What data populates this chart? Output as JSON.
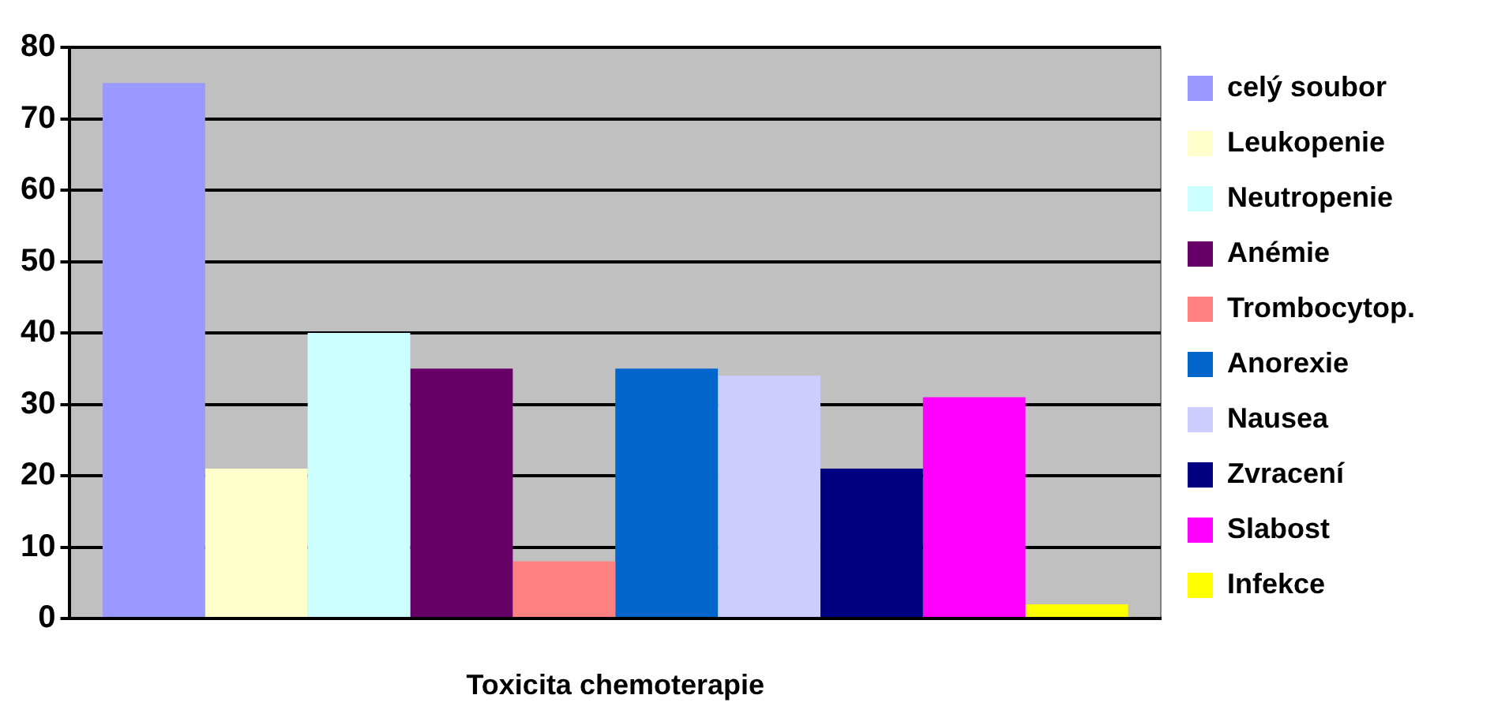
{
  "chart_data": {
    "type": "bar",
    "xlabel": "Toxicita chemoterapie",
    "categories": [
      null
    ],
    "series": [
      {
        "name": "celý soubor",
        "color": "#9999ff",
        "values": [
          75
        ]
      },
      {
        "name": "Leukopenie",
        "color": "#ffffcc",
        "values": [
          21
        ]
      },
      {
        "name": "Neutropenie",
        "color": "#ccffff",
        "values": [
          40
        ]
      },
      {
        "name": "Anémie",
        "color": "#660066",
        "values": [
          35
        ]
      },
      {
        "name": "Trombocytop.",
        "color": "#ff8080",
        "values": [
          8
        ]
      },
      {
        "name": "Anorexie",
        "color": "#0066cc",
        "values": [
          35
        ]
      },
      {
        "name": "Nausea",
        "color": "#ccccff",
        "values": [
          34
        ]
      },
      {
        "name": "Zvracení",
        "color": "#000080",
        "values": [
          21
        ]
      },
      {
        "name": "Slabost",
        "color": "#ff00ff",
        "values": [
          31
        ]
      },
      {
        "name": "Infekce",
        "color": "#ffff00",
        "values": [
          2
        ]
      }
    ],
    "ylim": [
      0,
      80
    ],
    "yticks": [
      0,
      10,
      20,
      30,
      40,
      50,
      60,
      70,
      80
    ],
    "grid": "y",
    "legend": "right"
  }
}
